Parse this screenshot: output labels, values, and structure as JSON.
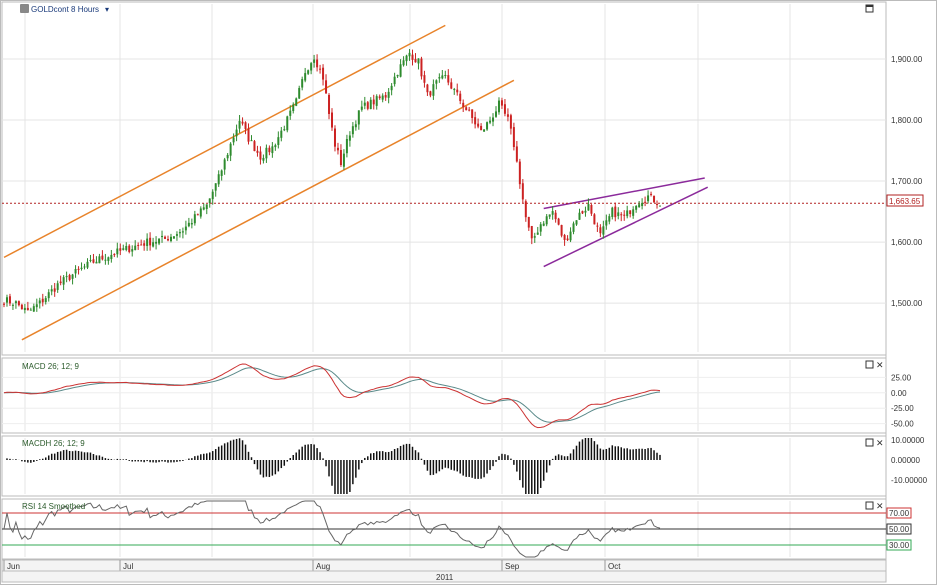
{
  "header": {
    "title": "GOLDcont 8 Hours",
    "dropdown_glyph": "▾",
    "settings_icon": "gear-icon"
  },
  "x_axis": {
    "months": [
      "Jun",
      "Jul",
      "Aug",
      "Sep",
      "Oct"
    ],
    "year": "2011"
  },
  "colors": {
    "bull": "#2e8b2e",
    "bear": "#cc2222",
    "channel": "#e8832a",
    "wedge": "#8b2a9b",
    "macd": "#cc3333",
    "signal": "#5a8a8a",
    "rsi": "#666666",
    "hist": "#111111",
    "rsi70": "#cc3333",
    "rsi30": "#33aa55",
    "price_line": "#b22222"
  },
  "chart_data": [
    {
      "type": "candlestick",
      "name": "price",
      "ylim": [
        1420,
        1990
      ],
      "y_ticks": [
        "1,500.00",
        "1,600.00",
        "1,700.00",
        "1,800.00",
        "1,900.00"
      ],
      "y_tick_values": [
        1500,
        1600,
        1700,
        1800,
        1900
      ],
      "current_price": 1663.65,
      "current_price_label": "1,663.65",
      "close_path": [
        [
          0,
          1505
        ],
        [
          4,
          1500
        ],
        [
          8,
          1485
        ],
        [
          12,
          1500
        ],
        [
          18,
          1530
        ],
        [
          24,
          1550
        ],
        [
          30,
          1568
        ],
        [
          36,
          1580
        ],
        [
          42,
          1590
        ],
        [
          48,
          1600
        ],
        [
          54,
          1605
        ],
        [
          60,
          1620
        ],
        [
          64,
          1640
        ],
        [
          68,
          1660
        ],
        [
          72,
          1705
        ],
        [
          76,
          1760
        ],
        [
          79,
          1800
        ],
        [
          82,
          1770
        ],
        [
          86,
          1740
        ],
        [
          90,
          1755
        ],
        [
          94,
          1790
        ],
        [
          98,
          1830
        ],
        [
          101,
          1880
        ],
        [
          104,
          1905
        ],
        [
          107,
          1870
        ],
        [
          109,
          1810
        ],
        [
          111,
          1760
        ],
        [
          113,
          1730
        ],
        [
          116,
          1780
        ],
        [
          120,
          1820
        ],
        [
          124,
          1830
        ],
        [
          128,
          1840
        ],
        [
          132,
          1880
        ],
        [
          136,
          1910
        ],
        [
          139,
          1895
        ],
        [
          142,
          1840
        ],
        [
          145,
          1860
        ],
        [
          148,
          1870
        ],
        [
          152,
          1840
        ],
        [
          156,
          1810
        ],
        [
          160,
          1780
        ],
        [
          163,
          1800
        ],
        [
          166,
          1825
        ],
        [
          169,
          1800
        ],
        [
          171,
          1760
        ],
        [
          173,
          1700
        ],
        [
          175,
          1640
        ],
        [
          177,
          1600
        ],
        [
          180,
          1630
        ],
        [
          184,
          1650
        ],
        [
          188,
          1600
        ],
        [
          192,
          1640
        ],
        [
          196,
          1660
        ],
        [
          200,
          1610
        ],
        [
          204,
          1650
        ],
        [
          208,
          1640
        ],
        [
          212,
          1665
        ],
        [
          216,
          1675
        ],
        [
          220,
          1664
        ]
      ],
      "bar_count": 221,
      "first_bar_date": "Jun",
      "last_bar_date": "Oct"
    },
    {
      "type": "line",
      "name": "MACD 26; 12; 9",
      "ylim": [
        -62,
        50
      ],
      "y_ticks": [
        "25.00",
        "0.00",
        "-25.00",
        "-50.00"
      ],
      "y_tick_values": [
        25,
        0,
        -25,
        -50
      ]
    },
    {
      "type": "bar",
      "name": "MACDH 26; 12; 9",
      "ylim": [
        -17,
        11
      ],
      "y_ticks": [
        "10.00000",
        "0.00000",
        "-10.00000"
      ],
      "y_tick_values": [
        10,
        0,
        -10
      ]
    },
    {
      "type": "line",
      "name": "RSI 14 Smoothed",
      "ylim": [
        15,
        85
      ],
      "y_ticks": [
        "70.00",
        "50.00",
        "30.00"
      ],
      "y_tick_values": [
        70,
        50,
        30
      ]
    }
  ]
}
